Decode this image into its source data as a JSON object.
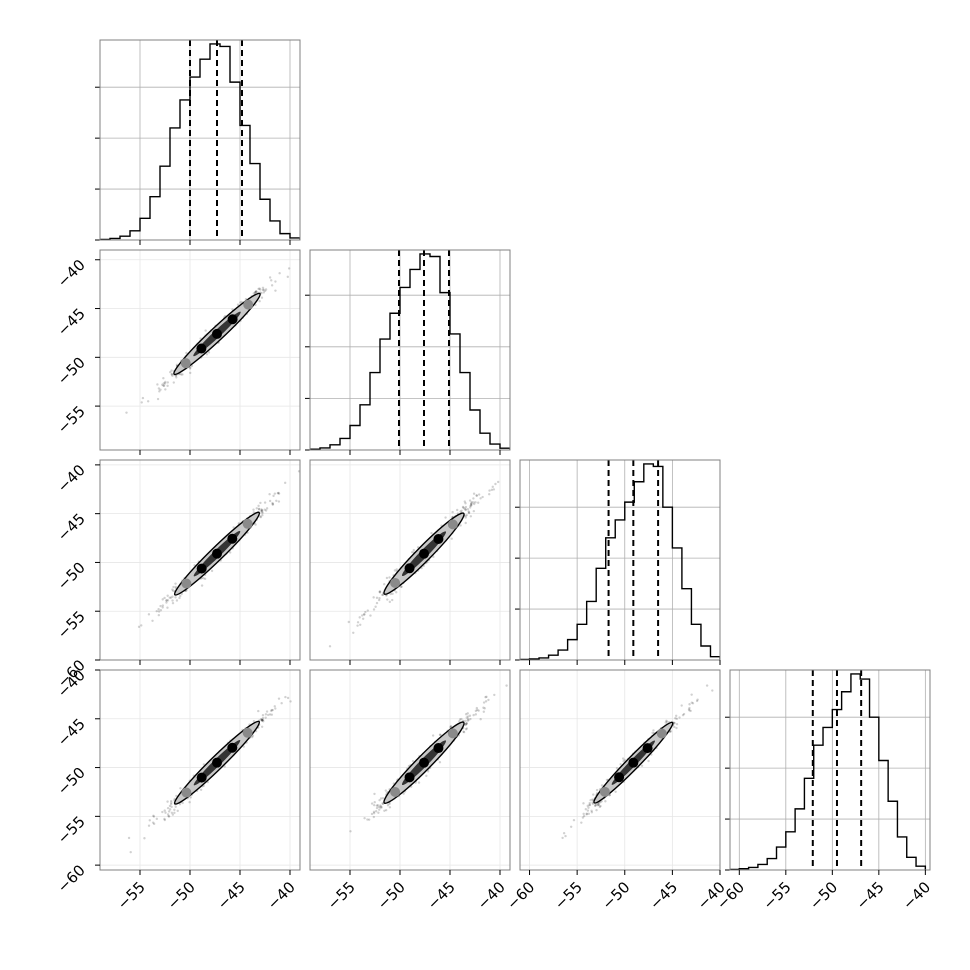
{
  "chart_data": {
    "type": "corner",
    "title": "",
    "n_params": 4,
    "colors": {
      "line": "#000000",
      "grid": "#b0b0b0",
      "frame": "#808080",
      "density_gray": "#c8c8c8"
    },
    "grid": true,
    "panels": [
      {
        "kind": "hist",
        "row": 0,
        "col": 0,
        "x_range": [
          -59.0,
          -39.0
        ],
        "bins": [
          -59,
          -58,
          -57,
          -56,
          -55,
          -54,
          -53,
          -52,
          -51,
          -50,
          -49,
          -48,
          -47,
          -46,
          -45,
          -44,
          -43,
          -42,
          -41,
          -40,
          -39
        ],
        "counts": [
          0.2,
          0.6,
          1.5,
          3.6,
          8.5,
          17,
          29,
          44,
          55,
          64,
          71,
          77,
          76,
          62,
          45,
          30,
          16,
          7.5,
          2.5,
          0.8
        ],
        "quantiles": [
          -50.0,
          -47.3,
          -44.8
        ],
        "y_ticks": [
          0,
          20,
          40,
          60
        ]
      },
      {
        "kind": "hist",
        "row": 1,
        "col": 1,
        "x_range": [
          -59.0,
          -39.0
        ],
        "bins": [
          -59,
          -58,
          -57,
          -56,
          -55,
          -54,
          -53,
          -52,
          -51,
          -50,
          -49,
          -48,
          -47,
          -46,
          -45,
          -44,
          -43,
          -42,
          -41,
          -40,
          -39
        ],
        "counts": [
          0.3,
          0.8,
          2,
          4.5,
          9.5,
          17.5,
          30,
          43,
          53,
          63,
          70,
          76,
          75,
          61,
          45,
          30,
          15.5,
          6.5,
          2.3,
          0.7
        ],
        "quantiles": [
          -50.1,
          -47.6,
          -45.1
        ],
        "y_ticks": [
          0,
          20,
          40,
          60
        ]
      },
      {
        "kind": "hist",
        "row": 2,
        "col": 2,
        "x_range": [
          -61.0,
          -40.0
        ],
        "bins": [
          -61,
          -60,
          -59,
          -58,
          -57,
          -56,
          -55,
          -54,
          -53,
          -52,
          -51,
          -50,
          -49,
          -48,
          -47,
          -46,
          -45,
          -44,
          -43,
          -42,
          -41,
          -40
        ],
        "counts": [
          0.2,
          0.4,
          0.8,
          1.9,
          3.9,
          8,
          14,
          23,
          36,
          48,
          55,
          62,
          70,
          77,
          76,
          60,
          44,
          28,
          14,
          5.5,
          1.3
        ],
        "quantiles": [
          -51.7,
          -49.1,
          -46.5
        ],
        "y_ticks": [
          0,
          20,
          40,
          60
        ]
      },
      {
        "kind": "hist",
        "row": 3,
        "col": 3,
        "x_range": [
          -61.0,
          -39.5
        ],
        "bins": [
          -61.0,
          -60.0,
          -59.0,
          -58.0,
          -57.0,
          -56.0,
          -55.0,
          -54.0,
          -53.0,
          -52.0,
          -51.0,
          -50.0,
          -49.0,
          -48.0,
          -47.0,
          -46.0,
          -45.0,
          -44.0,
          -43.0,
          -42.0,
          -41.0,
          -40.0
        ],
        "counts": [
          0.2,
          0.5,
          1,
          2.2,
          4.5,
          9,
          15,
          24,
          36,
          49,
          56,
          63,
          70,
          77,
          75,
          60,
          43,
          27,
          13,
          5,
          1.5
        ],
        "quantiles": [
          -52.1,
          -49.5,
          -46.9
        ],
        "y_ticks": [
          0,
          20,
          40,
          60
        ]
      },
      {
        "kind": "scatter2d",
        "row": 1,
        "col": 0,
        "x_range": [
          -59.0,
          -39.0
        ],
        "y_range": [
          -59.5,
          -39.0
        ],
        "x_center": -47.3,
        "y_center": -47.6,
        "sx": 2.6,
        "sy": 2.5,
        "rho": 0.985
      },
      {
        "kind": "scatter2d",
        "row": 2,
        "col": 0,
        "x_range": [
          -59.0,
          -39.0
        ],
        "y_range": [
          -60.0,
          -39.5
        ],
        "x_center": -47.3,
        "y_center": -49.1,
        "sx": 2.6,
        "sy": 2.6,
        "rho": 0.985
      },
      {
        "kind": "scatter2d",
        "row": 2,
        "col": 1,
        "x_range": [
          -59.0,
          -39.0
        ],
        "y_range": [
          -60.0,
          -39.5
        ],
        "x_center": -47.6,
        "y_center": -49.1,
        "sx": 2.5,
        "sy": 2.6,
        "rho": 0.98
      },
      {
        "kind": "scatter2d",
        "row": 3,
        "col": 0,
        "x_range": [
          -59.0,
          -39.0
        ],
        "y_range": [
          -60.5,
          -40.0
        ],
        "x_center": -47.3,
        "y_center": -49.5,
        "sx": 2.6,
        "sy": 2.6,
        "rho": 0.985
      },
      {
        "kind": "scatter2d",
        "row": 3,
        "col": 1,
        "x_range": [
          -59.0,
          -39.0
        ],
        "y_range": [
          -60.5,
          -40.0
        ],
        "x_center": -47.6,
        "y_center": -49.5,
        "sx": 2.5,
        "sy": 2.6,
        "rho": 0.98
      },
      {
        "kind": "scatter2d",
        "row": 3,
        "col": 2,
        "x_range": [
          -61.0,
          -40.0
        ],
        "y_range": [
          -60.5,
          -40.0
        ],
        "x_center": -49.1,
        "y_center": -49.5,
        "sx": 2.6,
        "sy": 2.6,
        "rho": 0.985
      }
    ],
    "y_tick_labels": {
      "row1": [
        "−40",
        "−45",
        "−50",
        "−55"
      ],
      "row2": [
        "−40",
        "−45",
        "−50",
        "−55",
        "−60"
      ],
      "row3": [
        "−40",
        "−45",
        "−50",
        "−55",
        "−60"
      ]
    },
    "x_tick_labels": {
      "col0": [
        "−55",
        "−50",
        "−45",
        "−40"
      ],
      "col1": [
        "−55",
        "−50",
        "−45",
        "−40"
      ],
      "col2": [
        "−60",
        "−55",
        "−50",
        "−45",
        "−40"
      ],
      "col3": [
        "−60",
        "−55",
        "−50",
        "−45",
        "−40"
      ]
    }
  }
}
